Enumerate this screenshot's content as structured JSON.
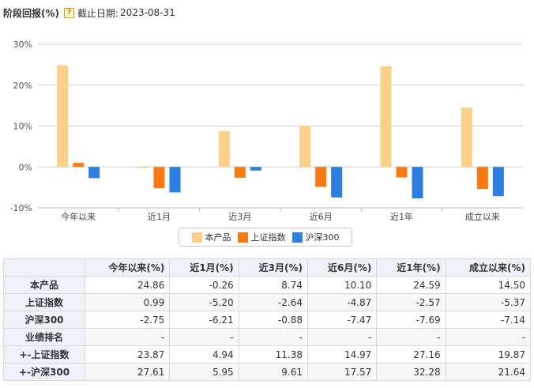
{
  "header": {
    "title": "阶段回报(%)",
    "help_icon": "question-icon",
    "date_label": "截止日期:",
    "date_value": "2023-08-31"
  },
  "chart_data": {
    "type": "bar",
    "categories": [
      "今年以来",
      "近1月",
      "近3月",
      "近6月",
      "近1年",
      "成立以来"
    ],
    "series": [
      {
        "name": "本产品",
        "color": "#fcd088",
        "values": [
          24.86,
          -0.26,
          8.74,
          10.1,
          24.59,
          14.5
        ]
      },
      {
        "name": "上证指数",
        "color": "#f97a12",
        "values": [
          0.99,
          -5.2,
          -2.64,
          -4.87,
          -2.57,
          -5.37
        ]
      },
      {
        "name": "沪深300",
        "color": "#2e7de1",
        "values": [
          -2.75,
          -6.21,
          -0.88,
          -7.47,
          -7.69,
          -7.14
        ]
      }
    ],
    "ylim": [
      -10,
      30
    ],
    "yticks": [
      30,
      20,
      10,
      0,
      -10
    ],
    "ytick_labels": [
      "30%",
      "20%",
      "10%",
      "0%",
      "-10%"
    ],
    "grid": true,
    "legend_position": "bottom-center"
  },
  "table": {
    "headers": [
      "",
      "今年以来(%)",
      "近1月(%)",
      "近3月(%)",
      "近6月(%)",
      "近1年(%)",
      "成立以来(%)"
    ],
    "rows": [
      {
        "label": "本产品",
        "cells": [
          "24.86",
          "-0.26",
          "8.74",
          "10.10",
          "24.59",
          "14.50"
        ]
      },
      {
        "label": "上证指数",
        "cells": [
          "0.99",
          "-5.20",
          "-2.64",
          "-4.87",
          "-2.57",
          "-5.37"
        ]
      },
      {
        "label": "沪深300",
        "cells": [
          "-2.75",
          "-6.21",
          "-0.88",
          "-7.47",
          "-7.69",
          "-7.14"
        ]
      },
      {
        "label": "业绩排名",
        "cells": [
          "-",
          "-",
          "-",
          "-",
          "-",
          "-"
        ]
      },
      {
        "label": "+-上证指数",
        "cells": [
          "23.87",
          "4.94",
          "11.38",
          "14.97",
          "27.16",
          "19.87"
        ]
      },
      {
        "label": "+-沪深300",
        "cells": [
          "27.61",
          "5.95",
          "9.61",
          "17.57",
          "32.28",
          "21.64"
        ]
      }
    ]
  }
}
